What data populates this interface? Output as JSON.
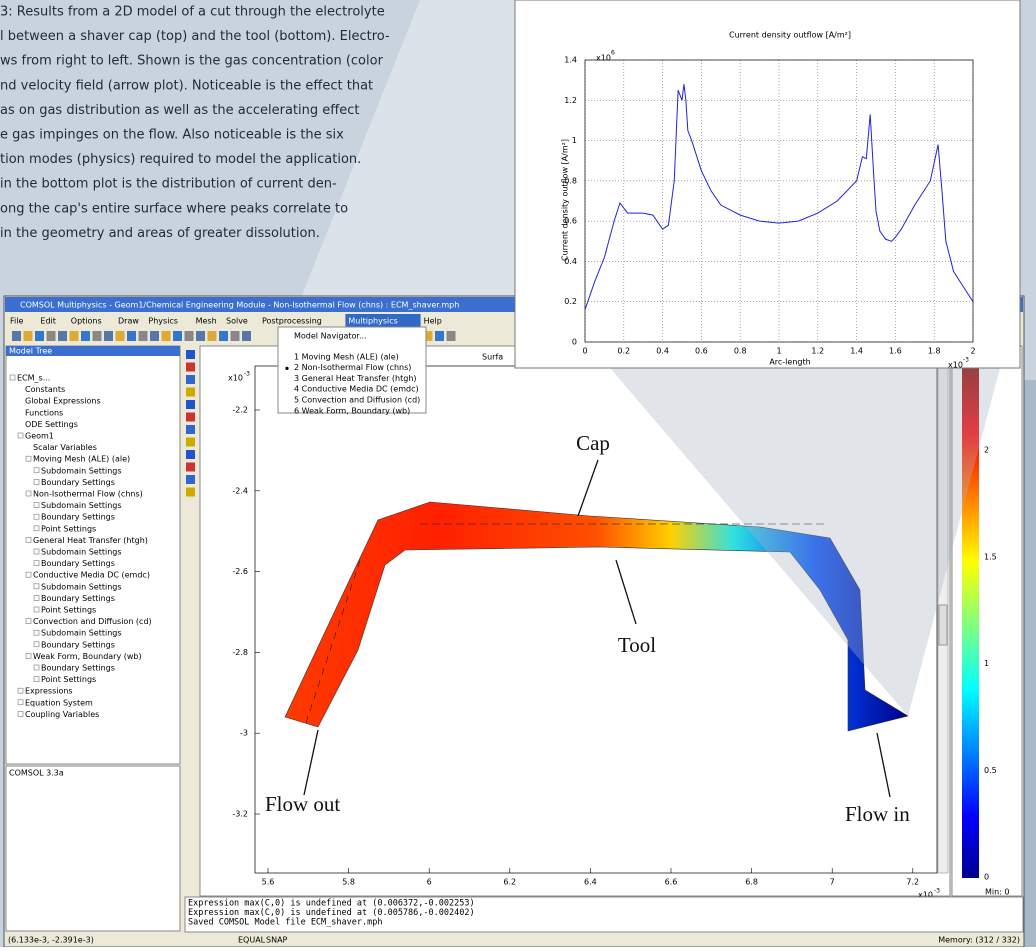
{
  "caption": [
    "3: Results from a 2D model of a cut through the electrolyte",
    "l between a shaver cap (top) and the tool (bottom). Electro-",
    "ws from right to left. Shown is the gas concentration (color",
    "nd velocity field (arrow plot). Noticeable is the effect that",
    "as on gas distribution as well as the accelerating effect",
    "e gas impinges on the flow. Also noticeable is the six",
    "tion modes (physics) required to model the application.",
    " in the bottom plot is the distribution of current den-",
    "ong the cap's entire surface where peaks correlate to",
    "in the geometry and areas of greater dissolution."
  ],
  "window": {
    "title": "COMSOL Multiphysics - Geom1/Chemical Engineering Module - Non-Isothermal Flow (chns) : ECM_shaver.mph",
    "menu": [
      "File",
      "Edit",
      "Options",
      "Draw",
      "Physics",
      "Mesh",
      "Solve",
      "Postprocessing",
      "Multiphysics",
      "Help"
    ],
    "dropdown": [
      "Model Navigator...",
      "1 Moving Mesh (ALE) (ale)",
      "2 Non-Isothermal Flow (chns)",
      "3 General Heat Transfer (htgh)",
      "4 Conductive Media DC (emdc)",
      "5 Convection and Diffusion (cd)",
      "6 Weak Form, Boundary (wb)"
    ],
    "model_tree_header": "Model Tree",
    "tree": [
      "ECM_s...",
      "Constants",
      "Global Expressions",
      "Functions",
      "ODE Settings",
      "Geom1",
      "Scalar Variables",
      "Moving Mesh (ALE) (ale)",
      "Subdomain Settings",
      "Boundary Settings",
      "Non-Isothermal Flow (chns)",
      "Subdomain Settings",
      "Boundary Settings",
      "Point Settings",
      "General Heat Transfer (htgh)",
      "Subdomain Settings",
      "Boundary Settings",
      "Conductive Media DC (emdc)",
      "Subdomain Settings",
      "Boundary Settings",
      "Point Settings",
      "Convection and Diffusion (cd)",
      "Subdomain Settings",
      "Boundary Settings",
      "Weak Form, Boundary (wb)",
      "Boundary Settings",
      "Point Settings",
      "Expressions",
      "Equation System",
      "Coupling Variables"
    ],
    "info_panel": "COMSOL 3.3a",
    "console": [
      "Expression max(C,0) is undefined at (0.006372,-0.002253)",
      "Expression max(C,0) is undefined at (0.005786,-0.002402)",
      "Saved COMSOL Model file ECM_shaver.mph"
    ],
    "status": [
      "(6.133e-3, -2.391e-3)",
      "EQUAL",
      "SNAP",
      "Memory: (312 / 332)"
    ]
  },
  "plot": {
    "surface_label": "Surfa",
    "y_multiplier": "x10",
    "y_multiplier_exp": "-3",
    "yticks": [
      "-2.2",
      "-2.4",
      "-2.6",
      "-2.8",
      "-3",
      "-3.2"
    ],
    "xticks": [
      "5.6",
      "5.8",
      "6",
      "6.2",
      "6.4",
      "6.6",
      "6.8",
      "7",
      "7.2"
    ],
    "x_multiplier": "x10",
    "x_multiplier_exp": "-3",
    "colorbar_ticks": [
      "2",
      "1.5",
      "1",
      "0.5",
      "0"
    ],
    "colorbar_min": "Min: 0",
    "annotations": [
      "Cap",
      "Tool",
      "Flow out",
      "Flow in"
    ]
  },
  "chart_data": {
    "type": "line",
    "title": "Current density outflow [A/m²]",
    "x_label": "Arc-length",
    "y_label": "Current density outflow [A/m²]",
    "x_multiplier": "x10",
    "x_multiplier_exp": "-3",
    "y_multiplier": "x10",
    "y_multiplier_exp": "6",
    "x": [
      0,
      0.05,
      0.1,
      0.15,
      0.18,
      0.22,
      0.3,
      0.35,
      0.4,
      0.43,
      0.46,
      0.48,
      0.5,
      0.51,
      0.52,
      0.53,
      0.55,
      0.6,
      0.65,
      0.7,
      0.8,
      0.9,
      1.0,
      1.1,
      1.2,
      1.3,
      1.4,
      1.43,
      1.45,
      1.47,
      1.49,
      1.5,
      1.52,
      1.55,
      1.58,
      1.6,
      1.63,
      1.7,
      1.78,
      1.82,
      1.84,
      1.86,
      1.9,
      2.0
    ],
    "values": [
      0.16,
      0.3,
      0.42,
      0.6,
      0.69,
      0.64,
      0.64,
      0.63,
      0.56,
      0.58,
      0.8,
      1.25,
      1.2,
      1.28,
      1.2,
      1.05,
      1.0,
      0.85,
      0.75,
      0.68,
      0.63,
      0.6,
      0.59,
      0.6,
      0.64,
      0.7,
      0.8,
      0.92,
      0.91,
      1.13,
      0.8,
      0.65,
      0.55,
      0.51,
      0.5,
      0.52,
      0.56,
      0.68,
      0.8,
      0.98,
      0.75,
      0.5,
      0.35,
      0.2
    ],
    "color": "#2222dd",
    "xlim": [
      0,
      2
    ],
    "ylim": [
      0,
      1.4
    ],
    "xticks": [
      0,
      0.2,
      0.4,
      0.6,
      0.8,
      1,
      1.2,
      1.4,
      1.6,
      1.8,
      2
    ],
    "yticks": [
      0,
      0.2,
      0.4,
      0.6,
      0.8,
      1,
      1.2,
      1.4
    ],
    "grid": true
  }
}
